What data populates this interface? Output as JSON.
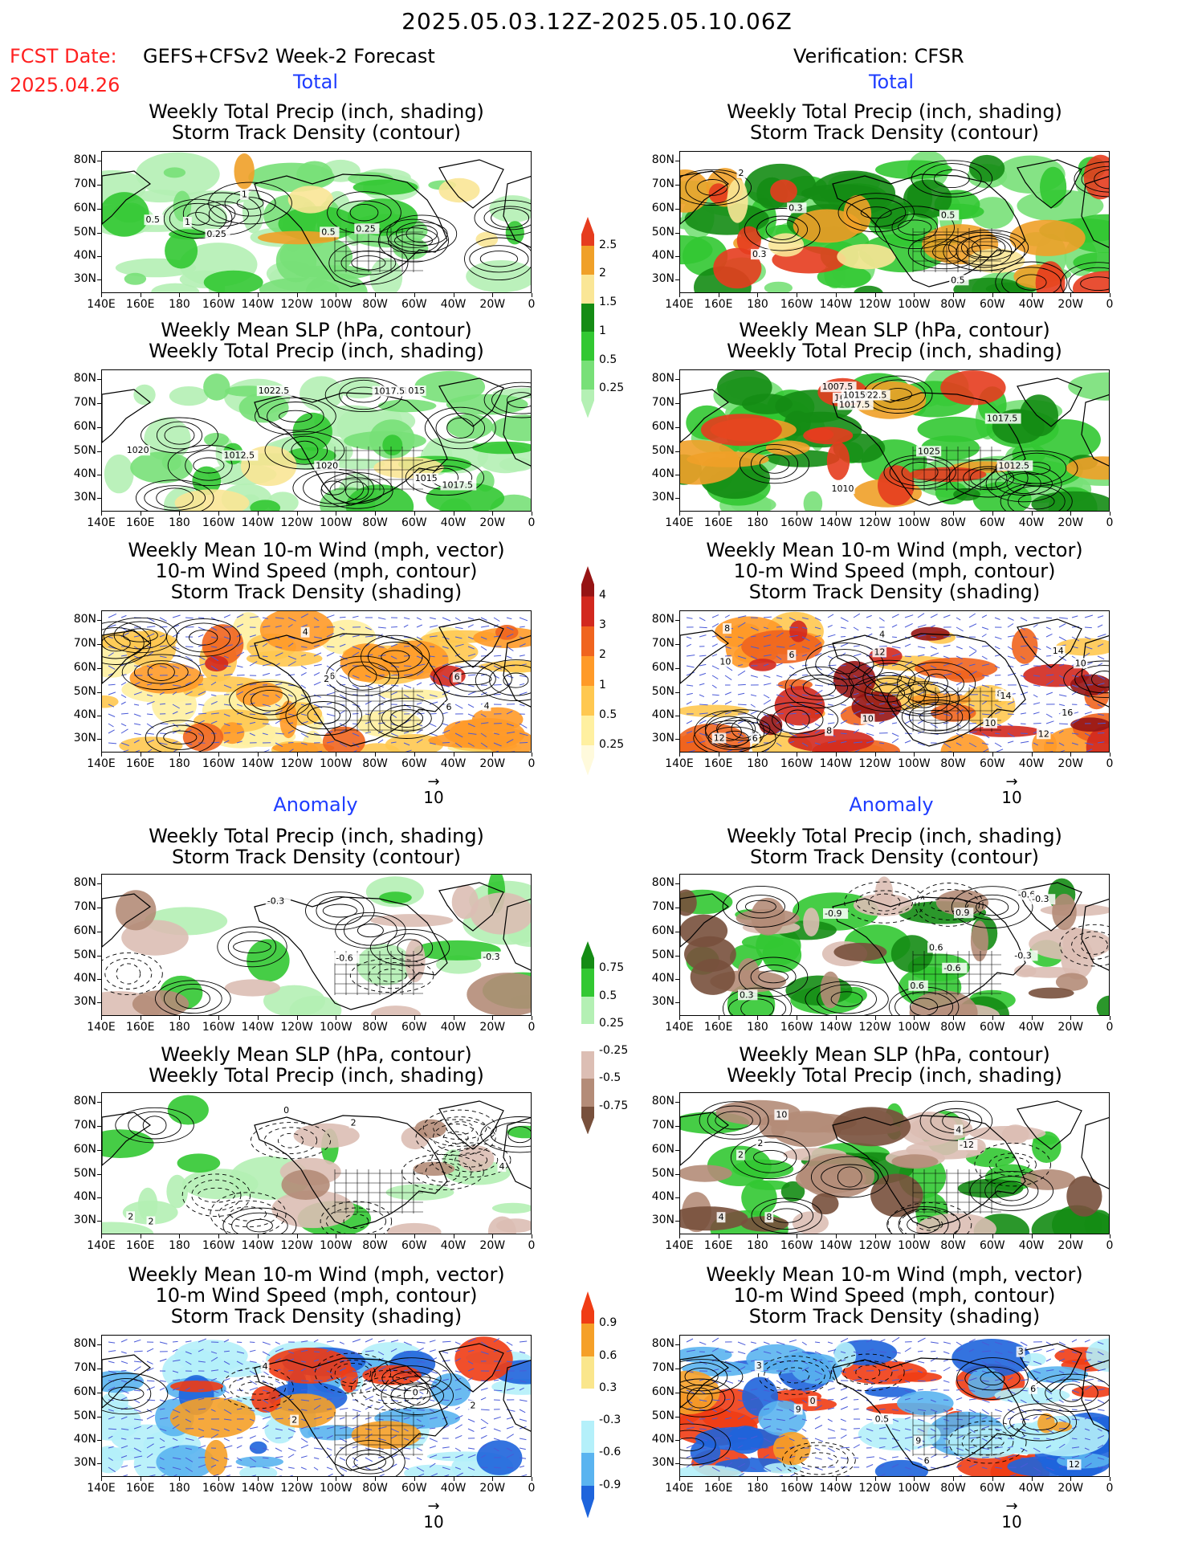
{
  "header": {
    "title": "2025.05.03.12Z-2025.05.10.06Z",
    "fcst_label": "FCST Date:",
    "fcst_model": "GEFS+CFSv2 Week-2 Forecast",
    "fcst_date": "2025.04.26",
    "verification": "Verification: CFSR"
  },
  "sections": {
    "total": "Total",
    "anomaly": "Anomaly"
  },
  "panel_titles": {
    "precip_storm": [
      "Weekly Total Precip (inch, shading)",
      "Storm Track Density (contour)"
    ],
    "slp_precip": [
      "Weekly Mean SLP (hPa, contour)",
      "Weekly Total Precip (inch, shading)"
    ],
    "wind_storm": [
      "Weekly Mean 10-m Wind (mph, vector)",
      "10-m Wind Speed (mph, contour)",
      "Storm Track Density (shading)"
    ]
  },
  "axes": {
    "lat_labels": [
      "80N",
      "70N",
      "60N",
      "50N",
      "40N",
      "30N"
    ],
    "lon_labels": [
      "140E",
      "160E",
      "180",
      "160W",
      "140W",
      "120W",
      "100W",
      "80W",
      "60W",
      "40W",
      "20W",
      "0"
    ]
  },
  "vector_ref": "10",
  "colorbars": {
    "precip_total": {
      "labels": [
        "0.25",
        "0.5",
        "1",
        "1.5",
        "2",
        "2.5"
      ],
      "colors": [
        "#b4f0b4",
        "#78e078",
        "#32c832",
        "#148c14",
        "#fae696",
        "#f0a028",
        "#e63c1e"
      ]
    },
    "storm_total": {
      "labels": [
        "0.25",
        "0.5",
        "1",
        "2",
        "3",
        "4"
      ],
      "colors": [
        "#fffadc",
        "#fff0a0",
        "#ffc850",
        "#ff9a28",
        "#f0641e",
        "#d2281e",
        "#961414"
      ]
    },
    "precip_anom": {
      "labels": [
        "0.75",
        "0.5",
        "0.25",
        "-0.25",
        "-0.5",
        "-0.75"
      ],
      "colors": [
        "#148c14",
        "#32c832",
        "#b4f0b4",
        "#ffffff",
        "#dcbeb4",
        "#b48c78",
        "#78503c"
      ]
    },
    "storm_anom": {
      "labels": [
        "0.9",
        "0.6",
        "0.3",
        "-0.3",
        "-0.6",
        "-0.9"
      ],
      "colors": [
        "#f03c14",
        "#f5a028",
        "#fae68c",
        "#ffffff",
        "#b4f0fa",
        "#5ab4f0",
        "#1e64dc"
      ]
    }
  },
  "contour_labels": {
    "fcst_precip": [
      "0.25",
      "0.5",
      "1",
      "1",
      "0.5",
      "0.25"
    ],
    "fcst_slp": [
      "1020",
      "1015",
      "1015",
      "1012.5",
      "1017.5",
      "1020",
      "1017.5",
      "1022.5"
    ],
    "fcst_wind": [
      "6",
      "4",
      "6",
      "2",
      "4",
      "6"
    ],
    "ver_precip": [
      "0.5",
      "0.5",
      "0.3",
      "2",
      "0.3"
    ],
    "ver_slp": [
      "1017.5",
      "1007.5",
      "1017.5",
      "1012.5",
      "1020",
      "1010",
      "1022.5",
      "1015",
      "1017.5",
      "1025"
    ],
    "ver_wind": [
      "6",
      "6",
      "8",
      "10",
      "12",
      "10",
      "8",
      "4",
      "10",
      "12",
      "14",
      "10",
      "16",
      "8",
      "14",
      "12"
    ],
    "fcst_precip_anom": [
      "-0.3",
      "-0.6",
      "-0.3"
    ],
    "fcst_slp_anom": [
      "0",
      "2",
      "2",
      "4",
      "2"
    ],
    "fcst_wind_anom": [
      "2",
      "4",
      "0",
      "2"
    ],
    "ver_precip_anom": [
      "0.6",
      "-0.3",
      "0.3",
      "-0.9",
      "0.9",
      "0.6",
      "-0.6",
      "-0.6",
      "-0.3"
    ],
    "ver_slp_anom": [
      "-12",
      "4",
      "10",
      "2",
      "8",
      "2",
      "4"
    ],
    "ver_wind_anom": [
      "0",
      "3",
      "6",
      "9",
      "12",
      "0.5",
      "3",
      "9",
      "6"
    ]
  }
}
